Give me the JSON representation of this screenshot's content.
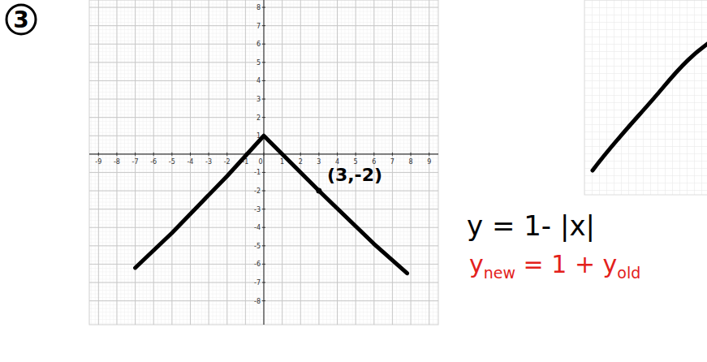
{
  "chart_data": {
    "type": "line",
    "panel_label": "3",
    "x": [
      -7,
      -5,
      -2,
      0,
      3,
      6,
      7.8
    ],
    "values": [
      -6.2,
      -4.3,
      -1.2,
      1,
      -2,
      -4.9,
      -6.5
    ],
    "color": "#000000",
    "xlim": [
      -9.5,
      9.5
    ],
    "ylim": [
      -9.3,
      8.4
    ],
    "xticks": [
      -9,
      -8,
      -7,
      -6,
      -5,
      -4,
      -3,
      -2,
      -1,
      0,
      1,
      2,
      3,
      4,
      5,
      6,
      7,
      8,
      9
    ],
    "yticks": [
      -8,
      -7,
      -6,
      -5,
      -4,
      -3,
      -2,
      -1,
      1,
      2,
      3,
      4,
      5,
      6,
      7,
      8
    ],
    "grid": true,
    "annotations": [
      {
        "text": "(3,-2)",
        "x": 3,
        "y": -2
      },
      {
        "text": "y = 1- |x|"
      },
      {
        "parts": [
          "y",
          "new",
          " = 1 + y",
          "old"
        ],
        "color": "#e3211c"
      }
    ]
  }
}
